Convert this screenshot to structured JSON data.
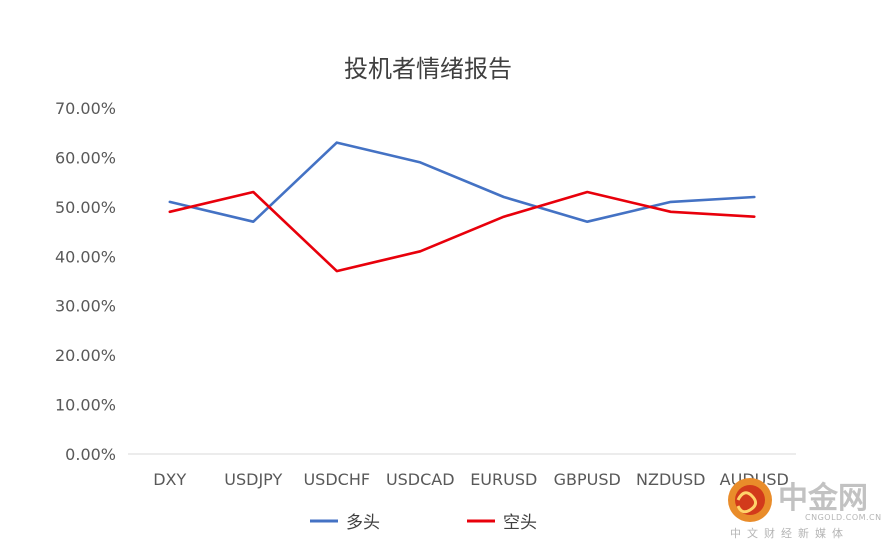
{
  "chart_data": {
    "type": "line",
    "title": "投机者情绪报告",
    "categories": [
      "DXY",
      "USDJPY",
      "USDCHF",
      "USDCAD",
      "EURUSD",
      "GBPUSD",
      "NZDUSD",
      "AUDUSD"
    ],
    "series": [
      {
        "name": "多头",
        "color": "#4472c4",
        "values": [
          51,
          47,
          63,
          59,
          52,
          47,
          51,
          52
        ]
      },
      {
        "name": "空头",
        "color": "#e8000b",
        "values": [
          49,
          53,
          37,
          41,
          48,
          53,
          49,
          48
        ]
      }
    ],
    "y_ticks": [
      "0.00%",
      "10.00%",
      "20.00%",
      "30.00%",
      "40.00%",
      "50.00%",
      "60.00%",
      "70.00%"
    ],
    "ylim": [
      0,
      70
    ],
    "grid": false,
    "legend_position": "bottom"
  },
  "watermark": {
    "logo_icon": "cngold-logo-icon",
    "brand": "中金网",
    "url": "CNGOLD.COM.CN",
    "tagline": "中文财经新媒体"
  }
}
